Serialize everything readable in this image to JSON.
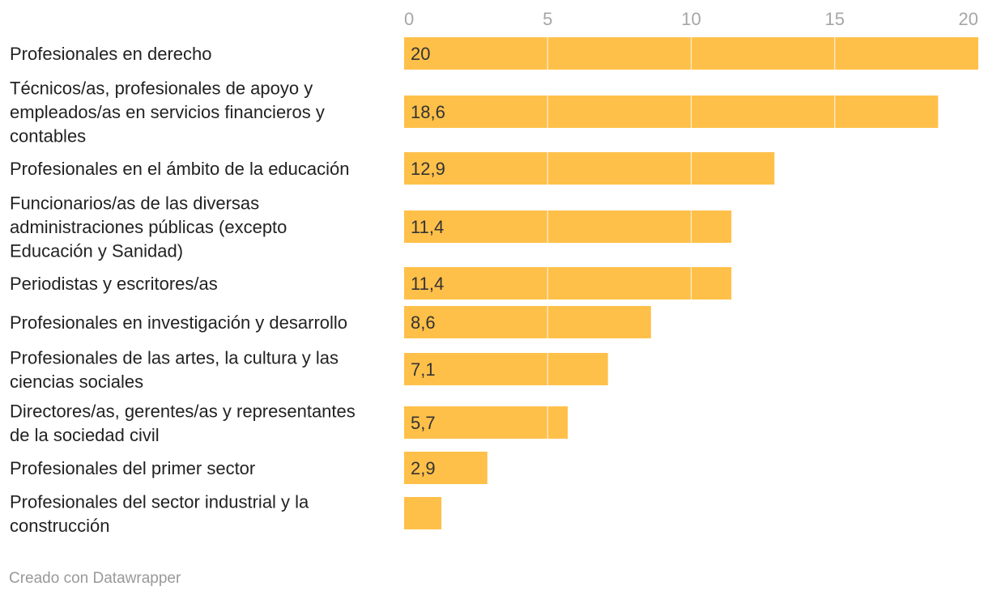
{
  "chart_data": {
    "type": "bar",
    "orientation": "horizontal",
    "categories": [
      [
        "Profesionales en derecho"
      ],
      [
        "Técnicos/as, profesionales de apoyo y",
        "empleados/as en servicios financieros y",
        "contables"
      ],
      [
        "Profesionales en el ámbito de la educación"
      ],
      [
        "Funcionarios/as de las diversas",
        "administraciones públicas (excepto",
        "Educación y Sanidad)"
      ],
      [
        "Periodistas y escritores/as"
      ],
      [
        "Profesionales en investigación y desarrollo"
      ],
      [
        "Profesionales de las artes, la cultura y las",
        "ciencias sociales"
      ],
      [
        "Directores/as, gerentes/as y representantes",
        "de la sociedad civil"
      ],
      [
        "Profesionales del primer sector"
      ],
      [
        "Profesionales del sector industrial y la",
        "construcción"
      ]
    ],
    "values": [
      20,
      18.6,
      12.9,
      11.4,
      11.4,
      8.6,
      7.1,
      5.7,
      2.9,
      1.3
    ],
    "value_labels": [
      "20",
      "18,6",
      "12,9",
      "11,4",
      "11,4",
      "8,6",
      "7,1",
      "5,7",
      "2,9",
      ""
    ],
    "x_ticks": [
      0,
      5,
      10,
      15,
      20
    ],
    "x_tick_labels": [
      "0",
      "5",
      "10",
      "15",
      "20"
    ],
    "xlim": [
      0,
      20
    ],
    "grid": true,
    "bar_color": "#ffc04a",
    "grid_color": "#ffffff"
  },
  "footer": {
    "credit": "Creado con Datawrapper"
  }
}
